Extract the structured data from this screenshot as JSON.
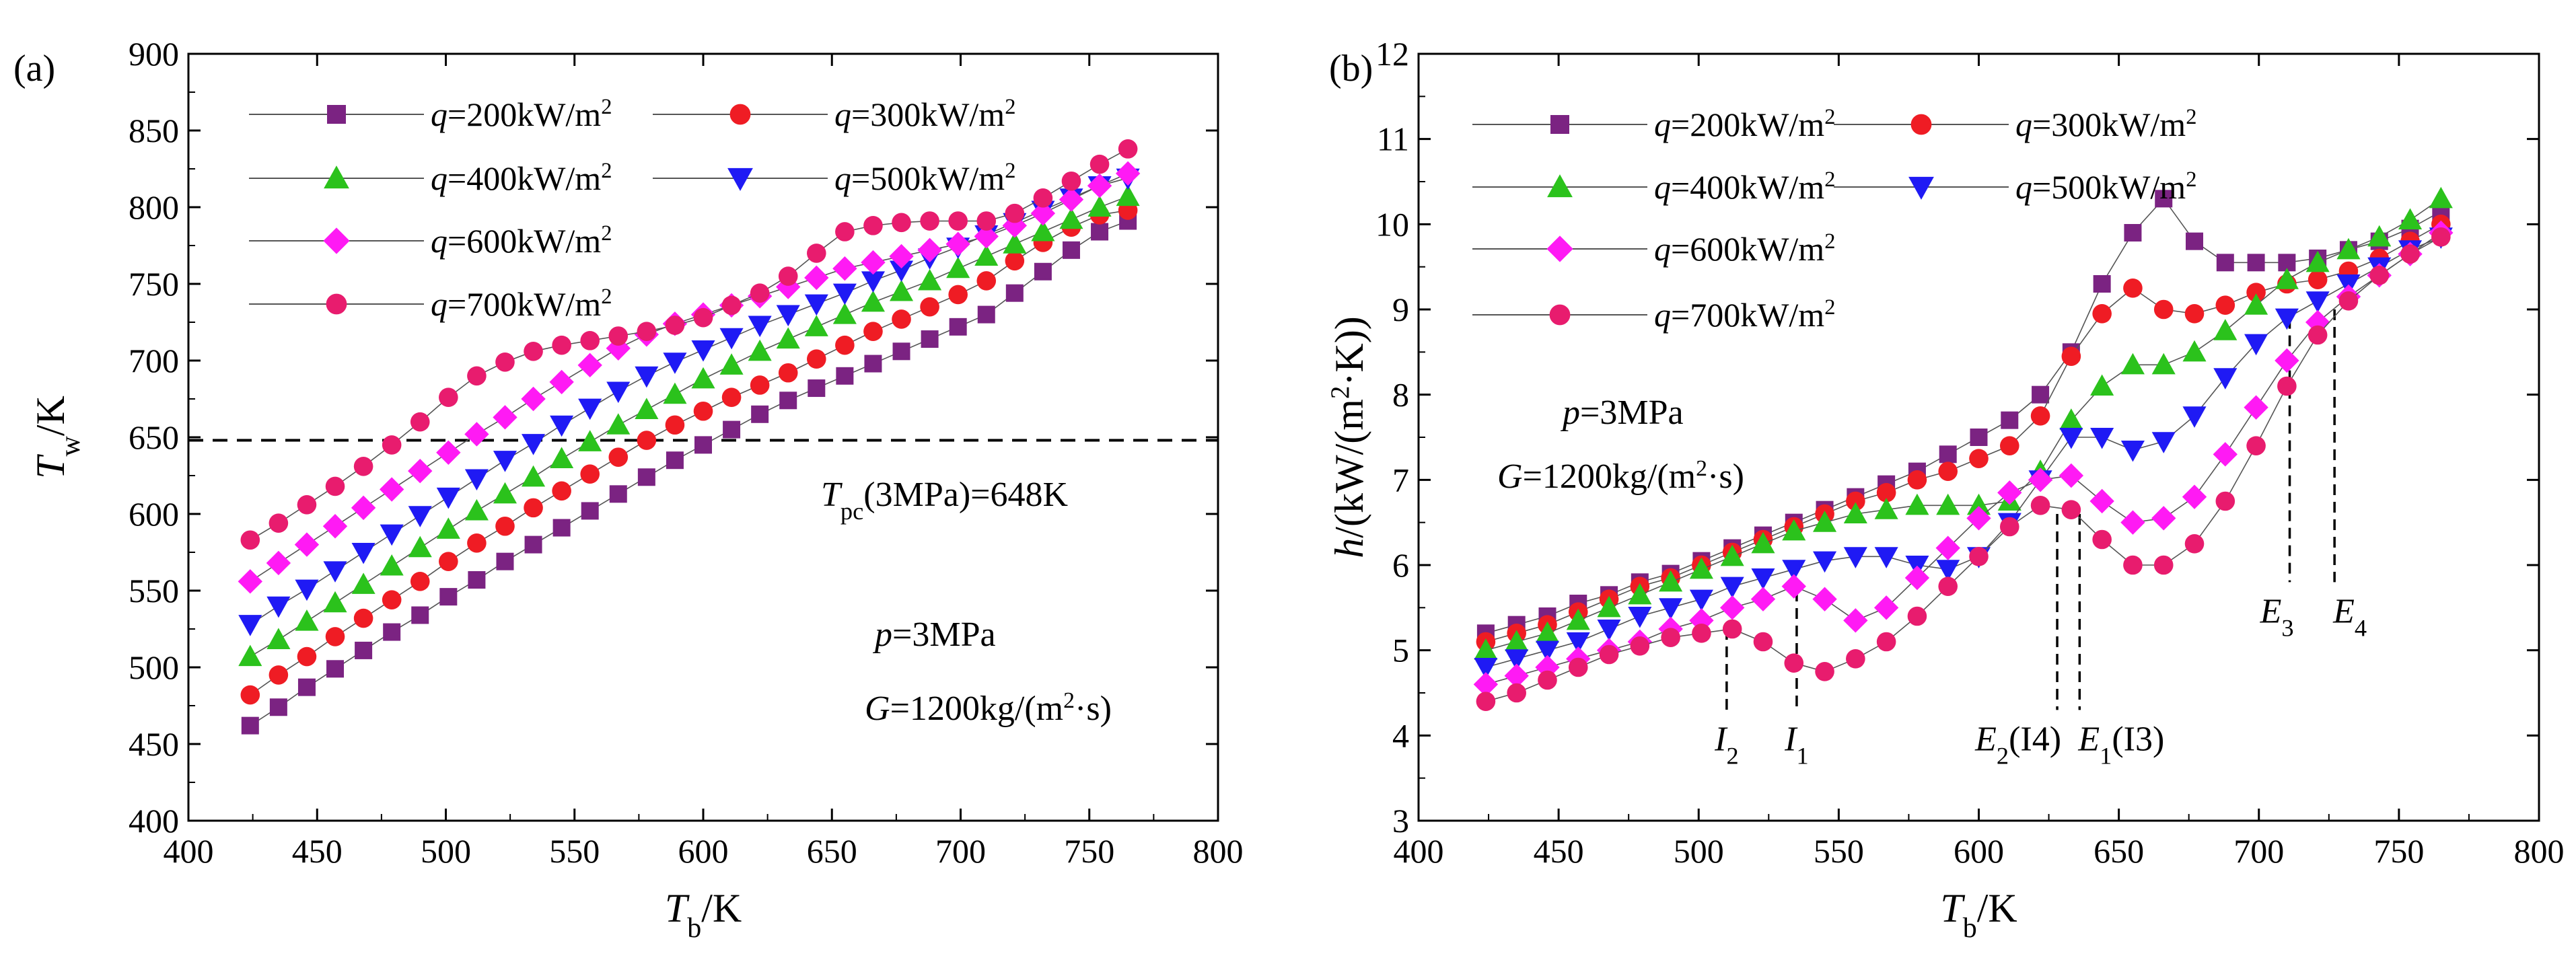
{
  "chart_data": [
    {
      "type": "scatter",
      "panel_label": "(a)",
      "title": "",
      "xlabel": {
        "main": "T",
        "sub": "b",
        "rest": "/K"
      },
      "ylabel": {
        "main": "T",
        "sub": "w",
        "rest": "/K"
      },
      "xlim": [
        400,
        800
      ],
      "ylim": [
        400,
        900
      ],
      "xticks": [
        "400",
        "450",
        "500",
        "550",
        "600",
        "650",
        "700",
        "750",
        "800"
      ],
      "yticks": [
        "400",
        "450",
        "500",
        "550",
        "600",
        "650",
        "700",
        "750",
        "800",
        "850",
        "900"
      ],
      "reference_line": {
        "y": 648,
        "style": "dashed",
        "label_main": "T",
        "label_sub": "pc",
        "label_rest": "(3MPa)=648K"
      },
      "conditions": [
        {
          "main": "p",
          "rest": "=3MPa"
        },
        {
          "main": "G",
          "rest": "=1200kg/(m",
          "sup": "2",
          "tail": "·s)"
        }
      ],
      "series": [
        {
          "name": "q=200kW/m2",
          "label_main": "q",
          "label_rest": "=200kW/m",
          "label_sup": "2",
          "color": "#7b2382",
          "marker": "square",
          "x": [
            424,
            435,
            446,
            457,
            468,
            479,
            490,
            501,
            512,
            523,
            534,
            545,
            556,
            567,
            578,
            589,
            600,
            611,
            622,
            633,
            644,
            655,
            666,
            677,
            688,
            699,
            710,
            721,
            732,
            743,
            754,
            765
          ],
          "y": [
            462,
            474,
            487,
            499,
            511,
            523,
            534,
            546,
            557,
            569,
            580,
            591,
            602,
            613,
            624,
            635,
            645,
            655,
            665,
            674,
            682,
            690,
            698,
            706,
            714,
            722,
            730,
            744,
            758,
            772,
            784,
            791
          ]
        },
        {
          "name": "q=300kW/m2",
          "label_main": "q",
          "label_rest": "=300kW/m",
          "label_sup": "2",
          "color": "#ef1c24",
          "marker": "circle",
          "x": [
            424,
            435,
            446,
            457,
            468,
            479,
            490,
            501,
            512,
            523,
            534,
            545,
            556,
            567,
            578,
            589,
            600,
            611,
            622,
            633,
            644,
            655,
            666,
            677,
            688,
            699,
            710,
            721,
            732,
            743,
            754,
            765
          ],
          "y": [
            482,
            495,
            507,
            520,
            532,
            544,
            556,
            569,
            581,
            592,
            604,
            615,
            626,
            637,
            648,
            658,
            667,
            676,
            684,
            692,
            701,
            710,
            719,
            727,
            735,
            743,
            752,
            765,
            777,
            787,
            795,
            798
          ]
        },
        {
          "name": "q=400kW/m2",
          "label_main": "q",
          "label_rest": "=400kW/m",
          "label_sup": "2",
          "color": "#2bc21c",
          "marker": "triangle-up",
          "x": [
            424,
            435,
            446,
            457,
            468,
            479,
            490,
            501,
            512,
            523,
            534,
            545,
            556,
            567,
            578,
            589,
            600,
            611,
            622,
            633,
            644,
            655,
            666,
            677,
            688,
            699,
            710,
            721,
            732,
            743,
            754,
            765
          ],
          "y": [
            507,
            518,
            530,
            542,
            554,
            566,
            578,
            590,
            602,
            613,
            624,
            636,
            647,
            658,
            668,
            678,
            688,
            697,
            706,
            714,
            722,
            730,
            738,
            745,
            752,
            760,
            768,
            776,
            784,
            792,
            800,
            807
          ]
        },
        {
          "name": "q=500kW/m2",
          "label_main": "q",
          "label_rest": "=500kW/m",
          "label_sup": "2",
          "color": "#1f1af4",
          "marker": "triangle-down",
          "x": [
            424,
            435,
            446,
            457,
            468,
            479,
            490,
            501,
            512,
            523,
            534,
            545,
            556,
            567,
            578,
            589,
            600,
            611,
            622,
            633,
            644,
            655,
            666,
            677,
            688,
            699,
            710,
            721,
            732,
            743,
            754,
            765
          ],
          "y": [
            528,
            540,
            551,
            563,
            575,
            587,
            599,
            611,
            623,
            635,
            646,
            658,
            669,
            680,
            690,
            699,
            707,
            715,
            723,
            730,
            737,
            744,
            752,
            759,
            767,
            774,
            782,
            790,
            798,
            806,
            814,
            819
          ]
        },
        {
          "name": "q=600kW/m2",
          "label_main": "q",
          "label_rest": "=600kW/m",
          "label_sup": "2",
          "color": "#ff1af4",
          "marker": "diamond",
          "x": [
            424,
            435,
            446,
            457,
            468,
            479,
            490,
            501,
            512,
            523,
            534,
            545,
            556,
            567,
            578,
            589,
            600,
            611,
            622,
            633,
            644,
            655,
            666,
            677,
            688,
            699,
            710,
            721,
            732,
            743,
            754,
            765
          ],
          "y": [
            556,
            568,
            580,
            592,
            604,
            616,
            628,
            640,
            652,
            663,
            675,
            686,
            697,
            708,
            717,
            724,
            730,
            736,
            742,
            748,
            754,
            760,
            764,
            768,
            772,
            776,
            781,
            788,
            796,
            805,
            814,
            822
          ]
        },
        {
          "name": "q=700kW/m2",
          "label_main": "q",
          "label_rest": "=700kW/m",
          "label_sup": "2",
          "color": "#e81c6e",
          "marker": "circle",
          "x": [
            424,
            435,
            446,
            457,
            468,
            479,
            490,
            501,
            512,
            523,
            534,
            545,
            556,
            567,
            578,
            589,
            600,
            611,
            622,
            633,
            644,
            655,
            666,
            677,
            688,
            699,
            710,
            721,
            732,
            743,
            754,
            765
          ],
          "y": [
            583,
            594,
            606,
            618,
            631,
            645,
            660,
            676,
            690,
            699,
            706,
            710,
            713,
            716,
            719,
            723,
            728,
            736,
            744,
            755,
            770,
            784,
            788,
            790,
            791,
            791,
            791,
            796,
            806,
            817,
            828,
            838
          ]
        }
      ]
    },
    {
      "type": "line",
      "panel_label": "(b)",
      "title": "",
      "xlabel": {
        "main": "T",
        "sub": "b",
        "rest": "/K"
      },
      "ylabel": {
        "main": "h",
        "rest": "/(kW/(m",
        "sup": "2",
        "tail": "·K))"
      },
      "xlim": [
        400,
        800
      ],
      "ylim": [
        3,
        12
      ],
      "xticks": [
        "400",
        "450",
        "500",
        "550",
        "600",
        "650",
        "700",
        "750",
        "800"
      ],
      "yticks": [
        "3",
        "4",
        "5",
        "6",
        "7",
        "8",
        "9",
        "10",
        "11",
        "12"
      ],
      "conditions": [
        {
          "main": "p",
          "rest": "=3MPa"
        },
        {
          "main": "G",
          "rest": "=1200kg/(m",
          "sup": "2",
          "tail": "·s)"
        }
      ],
      "annotations": [
        {
          "x": 510,
          "y_from": 5.25,
          "y_to": 4.3,
          "main": "I",
          "sub": "2",
          "rest": ""
        },
        {
          "x": 535,
          "y_from": 5.7,
          "y_to": 4.3,
          "main": "I",
          "sub": "1",
          "rest": ""
        },
        {
          "x": 628,
          "y_from": 6.6,
          "y_to": 4.3,
          "main": "E",
          "sub": "2",
          "rest": "(I4)",
          "position": "left"
        },
        {
          "x": 636,
          "y_from": 6.6,
          "y_to": 4.3,
          "main": "E",
          "sub": "1",
          "rest": "(I3)",
          "position": "right"
        },
        {
          "x": 711,
          "y_from": 8.9,
          "y_to": 5.8,
          "main": "E",
          "sub": "3",
          "rest": "",
          "position": "left"
        },
        {
          "x": 727,
          "y_from": 9.0,
          "y_to": 5.8,
          "main": "E",
          "sub": "4",
          "rest": "",
          "position": "right"
        }
      ],
      "series": [
        {
          "name": "q=200kW/m2",
          "label_main": "q",
          "label_rest": "=200kW/m",
          "label_sup": "2",
          "color": "#7b2382",
          "marker": "square",
          "x": [
            424,
            435,
            446,
            457,
            468,
            479,
            490,
            501,
            512,
            523,
            534,
            545,
            556,
            567,
            578,
            589,
            600,
            611,
            622,
            633,
            644,
            655,
            666,
            677,
            688,
            699,
            710,
            721,
            732,
            743,
            754,
            765
          ],
          "y": [
            5.2,
            5.3,
            5.4,
            5.55,
            5.65,
            5.8,
            5.9,
            6.05,
            6.2,
            6.35,
            6.5,
            6.65,
            6.8,
            6.95,
            7.1,
            7.3,
            7.5,
            7.7,
            8.0,
            8.5,
            9.3,
            9.9,
            10.3,
            9.8,
            9.55,
            9.55,
            9.55,
            9.6,
            9.7,
            9.8,
            9.95,
            10.15
          ]
        },
        {
          "name": "q=300kW/m2",
          "label_main": "q",
          "label_rest": "=300kW/m",
          "label_sup": "2",
          "color": "#ef1c24",
          "marker": "circle",
          "x": [
            424,
            435,
            446,
            457,
            468,
            479,
            490,
            501,
            512,
            523,
            534,
            545,
            556,
            567,
            578,
            589,
            600,
            611,
            622,
            633,
            644,
            655,
            666,
            677,
            688,
            699,
            710,
            721,
            732,
            743,
            754,
            765
          ],
          "y": [
            5.1,
            5.2,
            5.3,
            5.45,
            5.6,
            5.75,
            5.85,
            6.0,
            6.15,
            6.3,
            6.45,
            6.6,
            6.75,
            6.85,
            7.0,
            7.1,
            7.25,
            7.4,
            7.75,
            8.45,
            8.95,
            9.25,
            9.0,
            8.95,
            9.05,
            9.2,
            9.3,
            9.35,
            9.45,
            9.6,
            9.8,
            10.0
          ]
        },
        {
          "name": "q=400kW/m2",
          "label_main": "q",
          "label_rest": "=400kW/m",
          "label_sup": "2",
          "color": "#2bc21c",
          "marker": "triangle-up",
          "x": [
            424,
            435,
            446,
            457,
            468,
            479,
            490,
            501,
            512,
            523,
            534,
            545,
            556,
            567,
            578,
            589,
            600,
            611,
            622,
            633,
            644,
            655,
            666,
            677,
            688,
            699,
            710,
            721,
            732,
            743,
            754,
            765
          ],
          "y": [
            5.0,
            5.1,
            5.2,
            5.35,
            5.5,
            5.65,
            5.8,
            5.95,
            6.1,
            6.25,
            6.4,
            6.5,
            6.6,
            6.65,
            6.7,
            6.7,
            6.7,
            6.75,
            7.1,
            7.7,
            8.1,
            8.35,
            8.35,
            8.5,
            8.75,
            9.05,
            9.35,
            9.55,
            9.7,
            9.85,
            10.05,
            10.3
          ]
        },
        {
          "name": "q=500kW/m2",
          "label_main": "q",
          "label_rest": "=500kW/m",
          "label_sup": "2",
          "color": "#1f1af4",
          "marker": "triangle-down",
          "x": [
            424,
            435,
            446,
            457,
            468,
            479,
            490,
            501,
            512,
            523,
            534,
            545,
            556,
            567,
            578,
            589,
            600,
            611,
            622,
            633,
            644,
            655,
            666,
            677,
            688,
            699,
            710,
            721,
            732,
            743,
            754,
            765
          ],
          "y": [
            4.8,
            4.9,
            5.0,
            5.1,
            5.25,
            5.4,
            5.5,
            5.6,
            5.75,
            5.85,
            5.95,
            6.05,
            6.1,
            6.1,
            6.0,
            5.95,
            6.1,
            6.5,
            7.0,
            7.5,
            7.5,
            7.35,
            7.45,
            7.75,
            8.2,
            8.6,
            8.9,
            9.1,
            9.3,
            9.5,
            9.7,
            9.85
          ]
        },
        {
          "name": "q=600kW/m2",
          "label_main": "q",
          "label_rest": "=600kW/m",
          "label_sup": "2",
          "color": "#ff1af4",
          "marker": "diamond",
          "x": [
            424,
            435,
            446,
            457,
            468,
            479,
            490,
            501,
            512,
            523,
            534,
            545,
            556,
            567,
            578,
            589,
            600,
            611,
            622,
            633,
            644,
            655,
            666,
            677,
            688,
            699,
            710,
            721,
            732,
            743,
            754,
            765
          ],
          "y": [
            4.6,
            4.7,
            4.8,
            4.9,
            5.0,
            5.1,
            5.25,
            5.35,
            5.5,
            5.6,
            5.75,
            5.6,
            5.35,
            5.5,
            5.85,
            6.2,
            6.55,
            6.85,
            7.0,
            7.05,
            6.75,
            6.5,
            6.55,
            6.8,
            7.3,
            7.85,
            8.4,
            8.85,
            9.15,
            9.4,
            9.65,
            9.9
          ]
        },
        {
          "name": "q=700kW/m2",
          "label_main": "q",
          "label_rest": "=700kW/m",
          "label_sup": "2",
          "color": "#e81c6e",
          "marker": "circle",
          "x": [
            424,
            435,
            446,
            457,
            468,
            479,
            490,
            501,
            512,
            523,
            534,
            545,
            556,
            567,
            578,
            589,
            600,
            611,
            622,
            633,
            644,
            655,
            666,
            677,
            688,
            699,
            710,
            721,
            732,
            743,
            754,
            765
          ],
          "y": [
            4.4,
            4.5,
            4.65,
            4.8,
            4.95,
            5.05,
            5.15,
            5.2,
            5.25,
            5.1,
            4.85,
            4.75,
            4.9,
            5.1,
            5.4,
            5.75,
            6.1,
            6.45,
            6.7,
            6.65,
            6.3,
            6.0,
            6.0,
            6.25,
            6.75,
            7.4,
            8.1,
            8.7,
            9.1,
            9.4,
            9.65,
            9.85
          ]
        }
      ]
    }
  ]
}
